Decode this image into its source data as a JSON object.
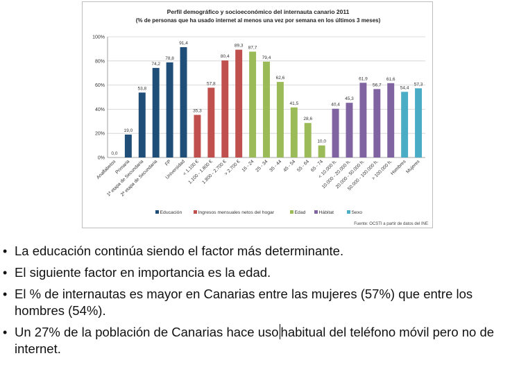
{
  "chart_data": {
    "type": "bar",
    "title": "Perfil demográfico y socioeconómico del internauta canario 2011",
    "subtitle": "(% de personas que ha usado internet al menos una vez por semana en los últimos 3 meses)",
    "ylim": [
      0,
      100
    ],
    "yticks": [
      "0%",
      "20%",
      "40%",
      "60%",
      "80%",
      "100%"
    ],
    "ytick_values": [
      0,
      20,
      40,
      60,
      80,
      100
    ],
    "grid": true,
    "legend_position": "bottom",
    "source": "Fuente: OCSTI a partir de datos del INE",
    "series_colors": {
      "Educación": "#1f4e79",
      "Ingresos mensuales netos del hogar": "#c0504d",
      "Edad": "#9bbb59",
      "Hábitat": "#8064a2",
      "Sexo": "#4bacc6"
    },
    "legend": [
      "Educación",
      "Ingresos mensuales netos del hogar",
      "Edad",
      "Hábitat",
      "Sexo"
    ],
    "categories": [
      "Analfabetos",
      "Primaria",
      "1ª etapa de Secundaria",
      "2ª etapa de Secundaria",
      "FP",
      "Universidad",
      "< 1.100 €",
      "1.100 - 1.800 €",
      "1.800 - 2.700 €",
      "> 2.700 €",
      "16 - 24",
      "25 - 34",
      "35 - 44",
      "45 - 54",
      "55 - 64",
      "65 - 74",
      "< 10.000 h.",
      "10.000 - 20.000 h.",
      "20.000 - 50.000 h.",
      "50.000 - 100.000 h.",
      "> 100.000 h.",
      "Hombres",
      "Mujeres"
    ],
    "values": [
      0.0,
      19.0,
      53.8,
      74.2,
      78.8,
      91.4,
      35.3,
      57.8,
      80.4,
      89.3,
      87.7,
      79.4,
      62.6,
      41.5,
      28.6,
      10.0,
      40.4,
      45.3,
      61.9,
      56.7,
      61.6,
      54.4,
      57.3
    ],
    "labels": [
      "0,0",
      "19,0",
      "53,8",
      "74,2",
      "78,8",
      "91,4",
      "35,3",
      "57,8",
      "80,4",
      "89,3",
      "87,7",
      "79,4",
      "62,6",
      "41,5",
      "28,6",
      "10,0",
      "40,4",
      "45,3",
      "61,9",
      "56,7",
      "61,6",
      "54,4",
      "57,3"
    ],
    "groups": [
      "Educación",
      "Educación",
      "Educación",
      "Educación",
      "Educación",
      "Educación",
      "Ingresos mensuales netos del hogar",
      "Ingresos mensuales netos del hogar",
      "Ingresos mensuales netos del hogar",
      "Ingresos mensuales netos del hogar",
      "Edad",
      "Edad",
      "Edad",
      "Edad",
      "Edad",
      "Edad",
      "Hábitat",
      "Hábitat",
      "Hábitat",
      "Hábitat",
      "Hábitat",
      "Sexo",
      "Sexo"
    ]
  },
  "bullets": {
    "b1": "La educación continúa siendo el factor más determinante.",
    "b2": "El siguiente factor en importancia es la edad.",
    "b3": "El % de internautas es mayor en Canarias entre las mujeres (57%) que entre los hombres (54%).",
    "b4_part1": "Un 27% de la población de Canarias hace uso",
    "b4_part2": "habitual del teléfono móvil pero no de internet."
  }
}
